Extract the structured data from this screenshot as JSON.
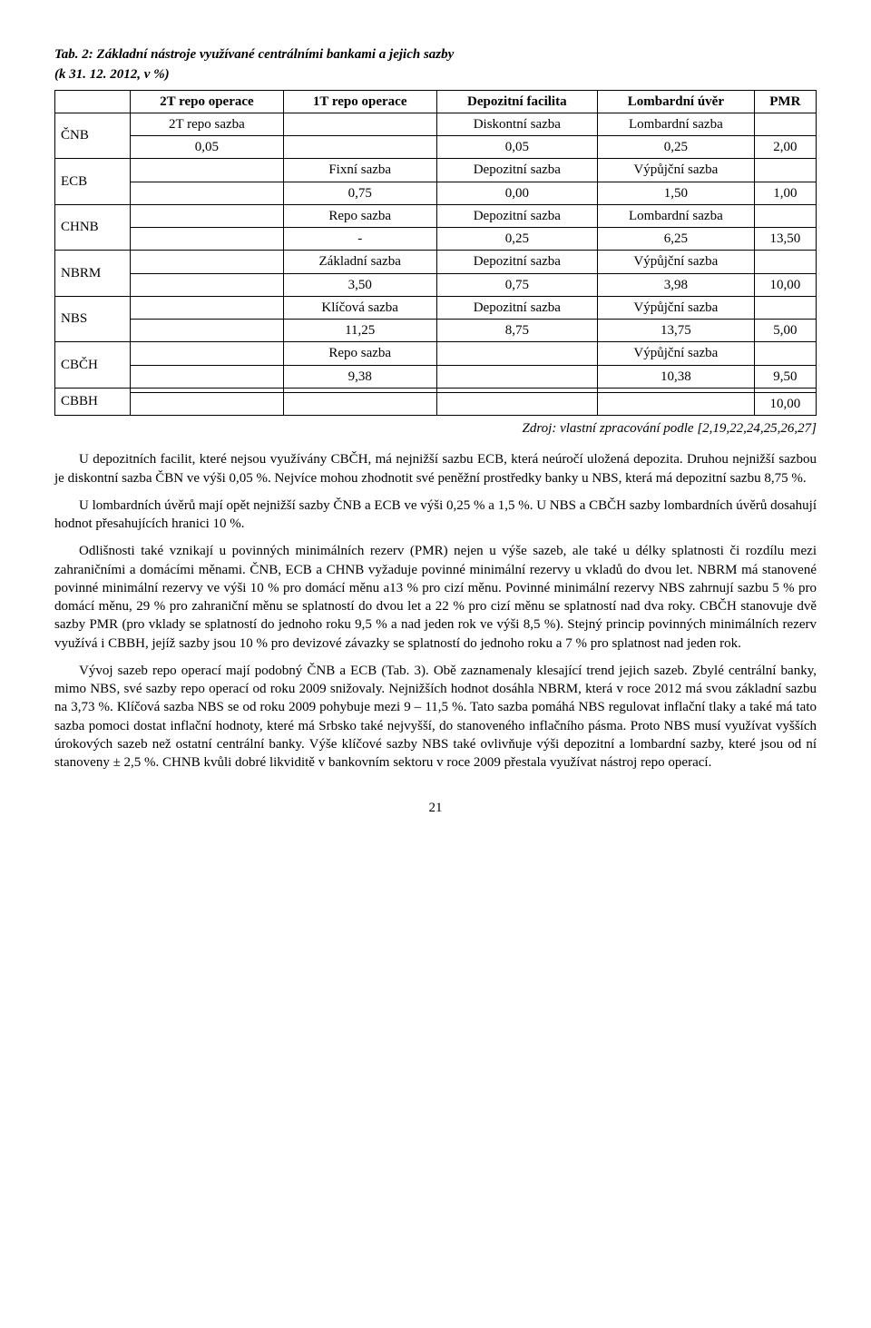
{
  "table": {
    "caption_line1": "Tab. 2: Základní nástroje využívané centrálními bankami a jejich sazby",
    "caption_line2": "(k 31. 12. 2012, v %)",
    "headers": [
      "",
      "2T repo operace",
      "1T repo operace",
      "Depozitní facilita",
      "Lombardní úvěr",
      "PMR"
    ],
    "sections": [
      {
        "bank": "ČNB",
        "labels": [
          "2T repo sazba",
          "",
          "Diskontní sazba",
          "Lombardní sazba",
          ""
        ],
        "values": [
          "0,05",
          "",
          "0,05",
          "0,25",
          "2,00"
        ]
      },
      {
        "bank": "ECB",
        "labels": [
          "",
          "Fixní sazba",
          "Depozitní sazba",
          "Výpůjční sazba",
          ""
        ],
        "values": [
          "",
          "0,75",
          "0,00",
          "1,50",
          "1,00"
        ]
      },
      {
        "bank": "CHNB",
        "labels": [
          "",
          "Repo sazba",
          "Depozitní sazba",
          "Lombardní sazba",
          ""
        ],
        "values": [
          "",
          "-",
          "0,25",
          "6,25",
          "13,50"
        ]
      },
      {
        "bank": "NBRM",
        "labels": [
          "",
          "Základní sazba",
          "Depozitní sazba",
          "Výpůjční sazba",
          ""
        ],
        "values": [
          "",
          "3,50",
          "0,75",
          "3,98",
          "10,00"
        ]
      },
      {
        "bank": "NBS",
        "labels": [
          "",
          "Klíčová sazba",
          "Depozitní sazba",
          "Výpůjční sazba",
          ""
        ],
        "values": [
          "",
          "11,25",
          "8,75",
          "13,75",
          "5,00"
        ]
      },
      {
        "bank": "CBČH",
        "labels": [
          "",
          "Repo sazba",
          "",
          "Výpůjční sazba",
          ""
        ],
        "values": [
          "",
          "9,38",
          "",
          "10,38",
          "9,50"
        ]
      },
      {
        "bank": "CBBH",
        "labels": [
          "",
          "",
          "",
          "",
          ""
        ],
        "values": [
          "",
          "",
          "",
          "",
          "10,00"
        ]
      }
    ],
    "source": "Zdroj: vlastní zpracování podle [2,19,22,24,25,26,27]"
  },
  "paragraphs": [
    "U depozitních facilit, které nejsou využívány CBČH, má nejnižší sazbu ECB, která neúročí uložená depozita. Druhou nejnižší sazbou je diskontní sazba ČBN ve výši 0,05 %. Nejvíce mohou zhodnotit své peněžní prostředky banky u NBS, která má depozitní sazbu 8,75 %.",
    "U lombardních úvěrů mají opět nejnižší sazby ČNB a ECB ve výši 0,25 % a 1,5 %. U NBS a CBČH sazby lombardních úvěrů dosahují hodnot přesahujících hranici 10 %.",
    "Odlišnosti také vznikají u povinných minimálních rezerv (PMR) nejen u výše sazeb, ale také u délky splatnosti či rozdílu mezi zahraničními a domácími měnami. ČNB, ECB a CHNB vyžaduje povinné minimální rezervy u vkladů do dvou let. NBRM má stanovené povinné minimální rezervy ve výši 10 % pro domácí měnu a13 % pro cizí měnu. Povinné minimální rezervy NBS zahrnují sazbu 5 % pro domácí měnu, 29 % pro zahraniční měnu se splatností do dvou let a 22 % pro cizí měnu se splatností nad dva roky. CBČH stanovuje dvě sazby PMR (pro vklady se splatností do jednoho roku 9,5 % a nad jeden rok ve výši 8,5 %). Stejný princip povinných minimálních rezerv využívá i CBBH, jejíž sazby jsou 10 % pro devizové závazky se splatností do jednoho roku a 7 % pro splatnost nad jeden rok.",
    "Vývoj sazeb repo operací mají podobný ČNB a ECB (Tab. 3). Obě zaznamenaly klesající trend jejich sazeb. Zbylé centrální banky, mimo NBS, své sazby repo operací od roku 2009 snižovaly. Nejnižších hodnot dosáhla NBRM, která v roce 2012 má svou základní sazbu na 3,73 %. Klíčová sazba NBS se od roku 2009 pohybuje mezi 9 – 11,5 %. Tato sazba pomáhá NBS regulovat inflační tlaky a také má tato sazba pomoci dostat inflační hodnoty, které má Srbsko také nejvyšší, do stanoveného inflačního pásma. Proto NBS musí využívat vyšších úrokových sazeb než ostatní centrální banky. Výše klíčové sazby NBS také ovlivňuje výši depozitní a lombardní sazby, které jsou od ní stanoveny ± 2,5 %. CHNB kvůli dobré likviditě v bankovním sektoru v roce 2009 přestala využívat nástroj repo operací."
  ],
  "page_number": "21",
  "style": {
    "font_family": "Times New Roman",
    "body_font_size_pt": 11,
    "background_color": "#ffffff",
    "text_color": "#000000",
    "border_color": "#000000"
  }
}
